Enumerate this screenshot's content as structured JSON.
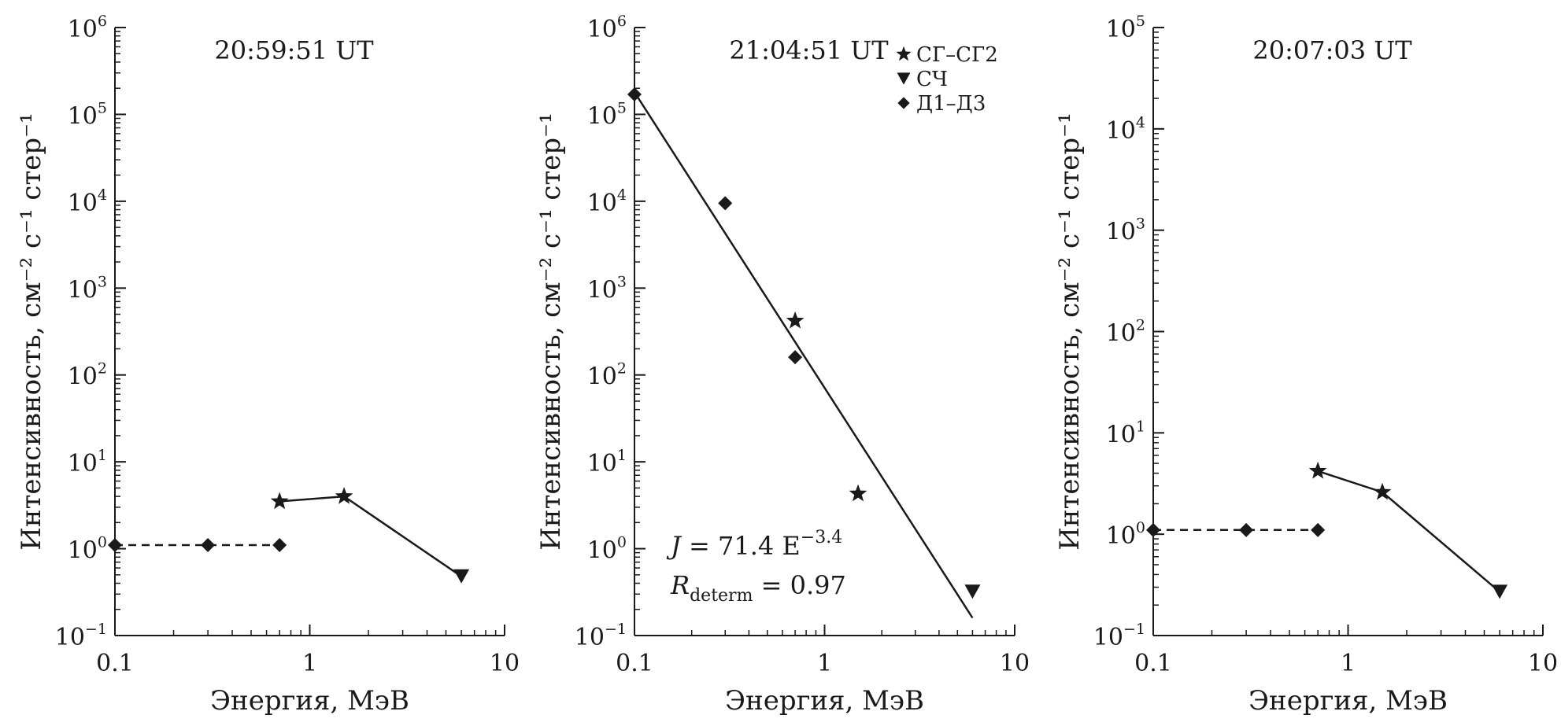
{
  "chart_data": [
    {
      "type": "scatter",
      "title": "20:59:51 UT",
      "xlabel": "Энергия, МэВ",
      "ylabel": "Интенсивность, см⁻² с⁻¹ стер⁻¹",
      "xscale": "log",
      "yscale": "log",
      "xlim": [
        0.1,
        10
      ],
      "ylim": [
        0.1,
        1000000
      ],
      "x_ticks": [
        {
          "v": 0.1,
          "label": "0.1"
        },
        {
          "v": 1,
          "label": "1"
        },
        {
          "v": 10,
          "label": "10"
        }
      ],
      "y_ticks": [
        {
          "v": 0.1,
          "base": "10",
          "exp": "−1"
        },
        {
          "v": 1,
          "base": "10",
          "exp": "0"
        },
        {
          "v": 10,
          "base": "10",
          "exp": "1"
        },
        {
          "v": 100,
          "base": "10",
          "exp": "2"
        },
        {
          "v": 1000,
          "base": "10",
          "exp": "3"
        },
        {
          "v": 10000,
          "base": "10",
          "exp": "4"
        },
        {
          "v": 100000,
          "base": "10",
          "exp": "5"
        },
        {
          "v": 1000000,
          "base": "10",
          "exp": "6"
        }
      ],
      "series": [
        {
          "name": "СГ–СГ2",
          "marker": "star",
          "x": [
            0.7,
            1.5
          ],
          "y": [
            3.5,
            4.0
          ]
        },
        {
          "name": "СЧ",
          "marker": "triangle-down",
          "x": [
            6.0
          ],
          "y": [
            0.48
          ]
        },
        {
          "name": "Д1–Д3",
          "marker": "diamond",
          "x": [
            0.1,
            0.3,
            0.7
          ],
          "y": [
            1.1,
            1.1,
            1.1
          ]
        }
      ],
      "lines": [
        {
          "style": "dashed",
          "x": [
            0.1,
            0.3,
            0.7
          ],
          "y": [
            1.1,
            1.1,
            1.1
          ]
        },
        {
          "style": "solid",
          "x": [
            0.7,
            1.5,
            6.0
          ],
          "y": [
            3.5,
            4.0,
            0.48
          ]
        }
      ]
    },
    {
      "type": "scatter",
      "title": "21:04:51 UT",
      "xlabel": "Энергия, МэВ",
      "ylabel": "Интенсивность, см⁻² с⁻¹ стер⁻¹",
      "xscale": "log",
      "yscale": "log",
      "xlim": [
        0.1,
        10
      ],
      "ylim": [
        0.1,
        1000000
      ],
      "x_ticks": [
        {
          "v": 0.1,
          "label": "0.1"
        },
        {
          "v": 1,
          "label": "1"
        },
        {
          "v": 10,
          "label": "10"
        }
      ],
      "y_ticks": [
        {
          "v": 0.1,
          "base": "10",
          "exp": "−1"
        },
        {
          "v": 1,
          "base": "10",
          "exp": "0"
        },
        {
          "v": 10,
          "base": "10",
          "exp": "1"
        },
        {
          "v": 100,
          "base": "10",
          "exp": "2"
        },
        {
          "v": 1000,
          "base": "10",
          "exp": "3"
        },
        {
          "v": 10000,
          "base": "10",
          "exp": "4"
        },
        {
          "v": 100000,
          "base": "10",
          "exp": "5"
        },
        {
          "v": 1000000,
          "base": "10",
          "exp": "6"
        }
      ],
      "legend": {
        "position": "top-right",
        "entries": [
          {
            "marker": "star",
            "label": "СГ–СГ2"
          },
          {
            "marker": "triangle-down",
            "label": "СЧ"
          },
          {
            "marker": "diamond",
            "label": "Д1–Д3"
          }
        ]
      },
      "series": [
        {
          "name": "СГ–СГ2",
          "marker": "star",
          "x": [
            0.7,
            1.5
          ],
          "y": [
            420,
            4.3
          ]
        },
        {
          "name": "СЧ",
          "marker": "triangle-down",
          "x": [
            6.0
          ],
          "y": [
            0.32
          ]
        },
        {
          "name": "Д1–Д3",
          "marker": "diamond",
          "x": [
            0.1,
            0.3,
            0.7
          ],
          "y": [
            170000,
            9500,
            160
          ]
        }
      ],
      "lines": [
        {
          "style": "solid",
          "x": [
            0.1,
            6.0
          ],
          "y": [
            180000,
            0.16
          ]
        }
      ],
      "annotations": {
        "fit": {
          "lhs": "J",
          "rhs": " = 71.4 E",
          "exp": "−3.4"
        },
        "r2": {
          "sym": "R",
          "sub": "determ",
          "rhs": " = 0.97"
        }
      }
    },
    {
      "type": "scatter",
      "title": "20:07:03 UT",
      "xlabel": "Энергия, МэВ",
      "ylabel": "Интенсивность, см⁻² с⁻¹ стер⁻¹",
      "xscale": "log",
      "yscale": "log",
      "xlim": [
        0.1,
        10
      ],
      "ylim": [
        0.1,
        100000
      ],
      "x_ticks": [
        {
          "v": 0.1,
          "label": "0.1"
        },
        {
          "v": 1,
          "label": "1"
        },
        {
          "v": 10,
          "label": "10"
        }
      ],
      "y_ticks": [
        {
          "v": 0.1,
          "base": "10",
          "exp": "−1"
        },
        {
          "v": 1,
          "base": "10",
          "exp": "0"
        },
        {
          "v": 10,
          "base": "10",
          "exp": "1"
        },
        {
          "v": 100,
          "base": "10",
          "exp": "2"
        },
        {
          "v": 1000,
          "base": "10",
          "exp": "3"
        },
        {
          "v": 10000,
          "base": "10",
          "exp": "4"
        },
        {
          "v": 100000,
          "base": "10",
          "exp": "5"
        }
      ],
      "series": [
        {
          "name": "СГ–СГ2",
          "marker": "star",
          "x": [
            0.7,
            1.5
          ],
          "y": [
            4.2,
            2.6
          ]
        },
        {
          "name": "СЧ",
          "marker": "triangle-down",
          "x": [
            6.0
          ],
          "y": [
            0.27
          ]
        },
        {
          "name": "Д1–Д3",
          "marker": "diamond",
          "x": [
            0.1,
            0.3,
            0.7
          ],
          "y": [
            1.1,
            1.1,
            1.1
          ]
        }
      ],
      "lines": [
        {
          "style": "dashed",
          "x": [
            0.1,
            0.3,
            0.7
          ],
          "y": [
            1.1,
            1.1,
            1.1
          ]
        },
        {
          "style": "solid",
          "x": [
            0.7,
            1.5,
            6.0
          ],
          "y": [
            4.2,
            2.6,
            0.27
          ]
        }
      ]
    }
  ]
}
